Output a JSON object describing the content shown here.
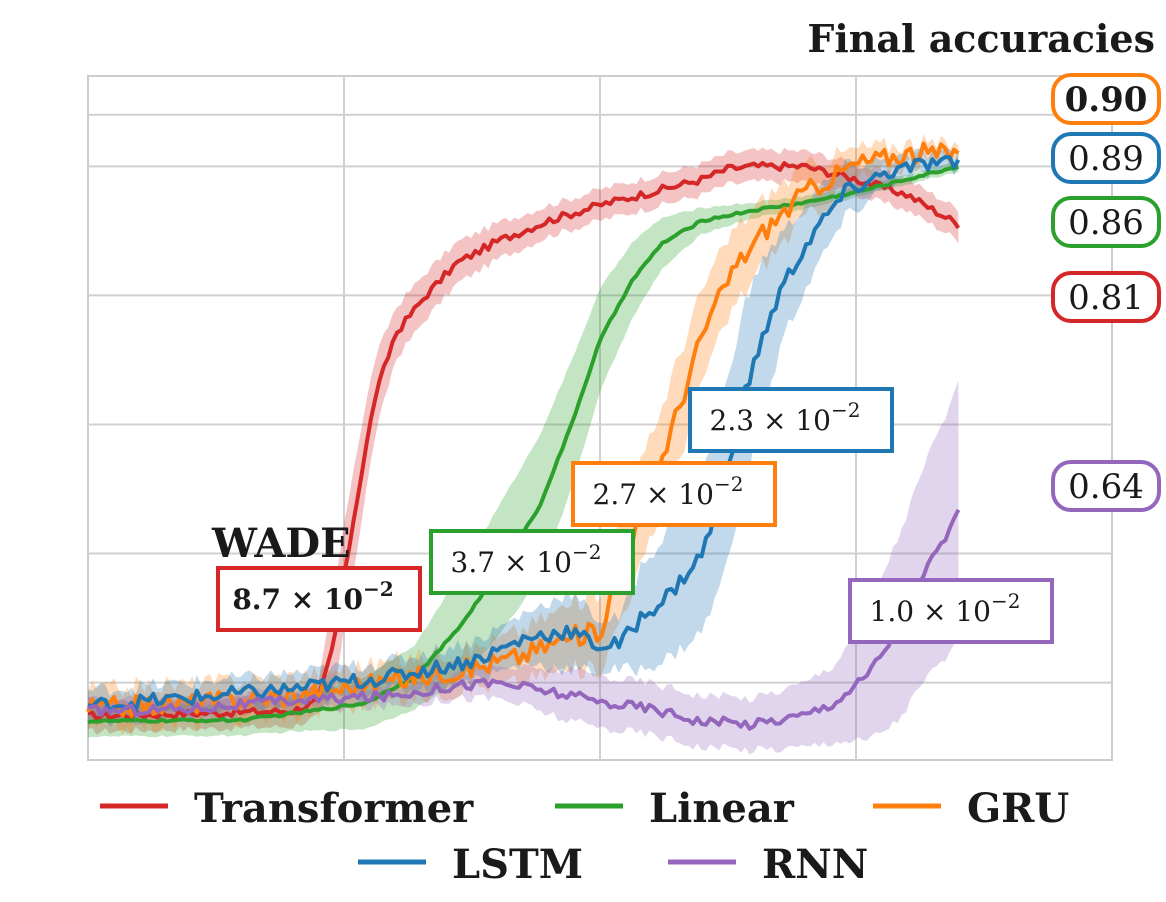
{
  "chart_data": {
    "type": "line",
    "title": "Final accuracies",
    "annotation_title": "WADE",
    "xlim": [
      0,
      1
    ],
    "ylim": [
      0.39,
      0.92
    ],
    "x_ticks": [
      0.25,
      0.5,
      0.75
    ],
    "y_ticks": [
      0.45,
      0.55,
      0.65,
      0.75,
      0.85,
      0.89
    ],
    "grid": true,
    "legend_position": "bottom",
    "series": [
      {
        "name": "Transformer",
        "color": "#d62728",
        "final_accuracy": "0.81",
        "final_bold": false,
        "wade": "8.7 × 10",
        "wade_exp": "−2",
        "wade_bold": true,
        "noise": 0.003,
        "points": [
          [
            0,
            0.424
          ],
          [
            0.1,
            0.426
          ],
          [
            0.2,
            0.428
          ],
          [
            0.225,
            0.436
          ],
          [
            0.24,
            0.48
          ],
          [
            0.26,
            0.58
          ],
          [
            0.28,
            0.67
          ],
          [
            0.3,
            0.72
          ],
          [
            0.33,
            0.75
          ],
          [
            0.36,
            0.775
          ],
          [
            0.4,
            0.792
          ],
          [
            0.45,
            0.808
          ],
          [
            0.5,
            0.82
          ],
          [
            0.55,
            0.83
          ],
          [
            0.6,
            0.84
          ],
          [
            0.625,
            0.848
          ],
          [
            0.65,
            0.85
          ],
          [
            0.7,
            0.85
          ],
          [
            0.75,
            0.84
          ],
          [
            0.8,
            0.828
          ],
          [
            0.85,
            0.805
          ]
        ],
        "band": [
          0.012,
          0.012,
          0.012,
          0.012,
          0.04,
          0.04,
          0.03,
          0.02,
          0.018,
          0.016,
          0.014,
          0.012,
          0.012,
          0.012,
          0.012,
          0.012,
          0.012,
          0.012,
          0.012,
          0.012,
          0.012
        ]
      },
      {
        "name": "Linear",
        "color": "#2ca02c",
        "final_accuracy": "0.86",
        "final_bold": false,
        "wade": "3.7 × 10",
        "wade_exp": "−2",
        "wade_bold": false,
        "noise": 0.001,
        "points": [
          [
            0,
            0.42
          ],
          [
            0.15,
            0.421
          ],
          [
            0.2,
            0.426
          ],
          [
            0.27,
            0.434
          ],
          [
            0.32,
            0.455
          ],
          [
            0.36,
            0.49
          ],
          [
            0.4,
            0.535
          ],
          [
            0.44,
            0.585
          ],
          [
            0.47,
            0.645
          ],
          [
            0.5,
            0.715
          ],
          [
            0.53,
            0.76
          ],
          [
            0.56,
            0.79
          ],
          [
            0.6,
            0.808
          ],
          [
            0.65,
            0.816
          ],
          [
            0.7,
            0.822
          ],
          [
            0.75,
            0.83
          ],
          [
            0.8,
            0.84
          ],
          [
            0.85,
            0.85
          ]
        ],
        "band": [
          0.012,
          0.012,
          0.014,
          0.02,
          0.025,
          0.04,
          0.05,
          0.055,
          0.05,
          0.04,
          0.03,
          0.02,
          0.01,
          0.006,
          0.005,
          0.004,
          0.004,
          0.004
        ]
      },
      {
        "name": "GRU",
        "color": "#ff7f0e",
        "final_accuracy": "0.90",
        "final_bold": true,
        "wade": "2.7 × 10",
        "wade_exp": "−2",
        "wade_bold": false,
        "noise": 0.008,
        "points": [
          [
            0,
            0.43
          ],
          [
            0.1,
            0.434
          ],
          [
            0.2,
            0.44
          ],
          [
            0.3,
            0.452
          ],
          [
            0.38,
            0.462
          ],
          [
            0.42,
            0.47
          ],
          [
            0.47,
            0.485
          ],
          [
            0.5,
            0.49
          ],
          [
            0.52,
            0.54
          ],
          [
            0.55,
            0.6
          ],
          [
            0.58,
            0.67
          ],
          [
            0.6,
            0.72
          ],
          [
            0.63,
            0.77
          ],
          [
            0.66,
            0.8
          ],
          [
            0.7,
            0.83
          ],
          [
            0.75,
            0.852
          ],
          [
            0.8,
            0.86
          ],
          [
            0.85,
            0.86
          ]
        ],
        "band": [
          0.015,
          0.015,
          0.015,
          0.015,
          0.015,
          0.02,
          0.025,
          0.03,
          0.04,
          0.04,
          0.04,
          0.035,
          0.03,
          0.025,
          0.02,
          0.012,
          0.008,
          0.006
        ]
      },
      {
        "name": "LSTM",
        "color": "#1f77b4",
        "final_accuracy": "0.89",
        "final_bold": false,
        "wade": "2.3 × 10",
        "wade_exp": "−2",
        "wade_bold": false,
        "noise": 0.006,
        "points": [
          [
            0,
            0.432
          ],
          [
            0.1,
            0.438
          ],
          [
            0.2,
            0.445
          ],
          [
            0.3,
            0.455
          ],
          [
            0.38,
            0.468
          ],
          [
            0.43,
            0.485
          ],
          [
            0.47,
            0.49
          ],
          [
            0.5,
            0.478
          ],
          [
            0.52,
            0.48
          ],
          [
            0.54,
            0.5
          ],
          [
            0.57,
            0.52
          ],
          [
            0.6,
            0.55
          ],
          [
            0.62,
            0.6
          ],
          [
            0.64,
            0.67
          ],
          [
            0.66,
            0.72
          ],
          [
            0.68,
            0.76
          ],
          [
            0.71,
            0.8
          ],
          [
            0.74,
            0.83
          ],
          [
            0.78,
            0.845
          ],
          [
            0.82,
            0.852
          ],
          [
            0.85,
            0.852
          ]
        ],
        "band": [
          0.012,
          0.012,
          0.012,
          0.012,
          0.015,
          0.02,
          0.03,
          0.02,
          0.02,
          0.04,
          0.05,
          0.06,
          0.07,
          0.07,
          0.06,
          0.04,
          0.03,
          0.02,
          0.01,
          0.008,
          0.006
        ]
      },
      {
        "name": "RNN",
        "color": "#9467bd",
        "final_accuracy": "0.64",
        "final_bold": false,
        "wade": "1.0 × 10",
        "wade_exp": "−2",
        "wade_bold": false,
        "noise": 0.004,
        "points": [
          [
            0,
            0.428
          ],
          [
            0.1,
            0.43
          ],
          [
            0.2,
            0.436
          ],
          [
            0.3,
            0.44
          ],
          [
            0.36,
            0.448
          ],
          [
            0.4,
            0.45
          ],
          [
            0.43,
            0.446
          ],
          [
            0.47,
            0.44
          ],
          [
            0.5,
            0.435
          ],
          [
            0.55,
            0.43
          ],
          [
            0.6,
            0.42
          ],
          [
            0.65,
            0.418
          ],
          [
            0.7,
            0.425
          ],
          [
            0.73,
            0.435
          ],
          [
            0.76,
            0.455
          ],
          [
            0.79,
            0.49
          ],
          [
            0.82,
            0.54
          ],
          [
            0.85,
            0.58
          ]
        ],
        "band": [
          0.008,
          0.008,
          0.008,
          0.008,
          0.01,
          0.012,
          0.015,
          0.02,
          0.02,
          0.02,
          0.02,
          0.02,
          0.025,
          0.03,
          0.05,
          0.07,
          0.085,
          0.1
        ]
      }
    ]
  }
}
